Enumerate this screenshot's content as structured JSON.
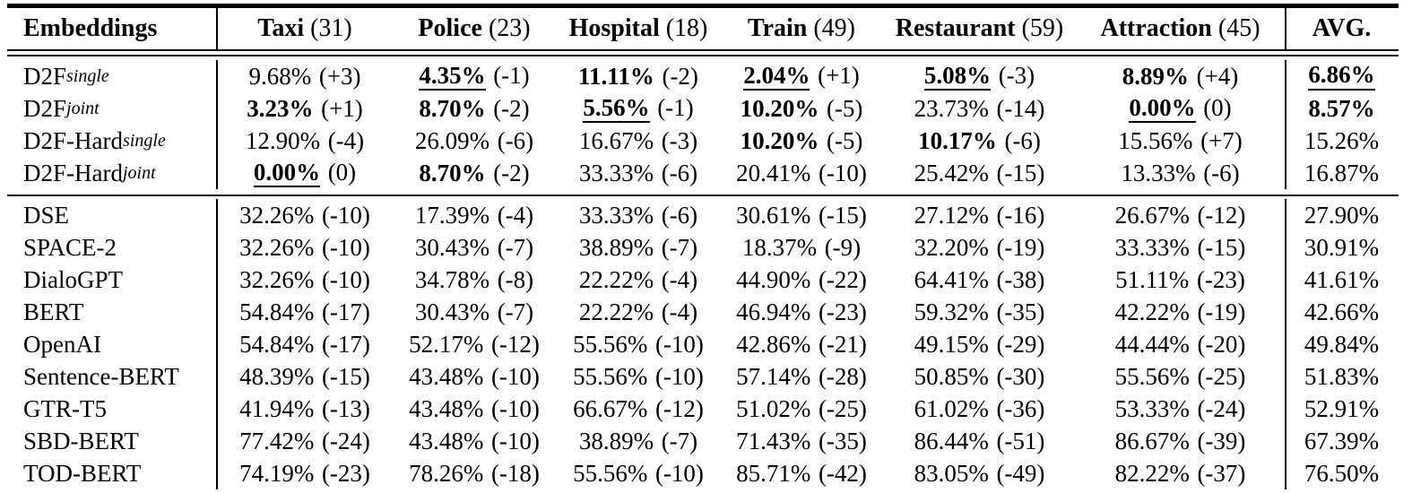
{
  "table": {
    "header": {
      "row_label": "Embeddings",
      "avg_label": "AVG.",
      "columns": [
        {
          "name": "Taxi",
          "count": "(31)"
        },
        {
          "name": "Police",
          "count": "(23)"
        },
        {
          "name": "Hospital",
          "count": "(18)"
        },
        {
          "name": "Train",
          "count": "(49)"
        },
        {
          "name": "Restaurant",
          "count": "(59)"
        },
        {
          "name": "Attraction",
          "count": "(45)"
        }
      ]
    },
    "section1": [
      {
        "label": {
          "base": "D2F",
          "sub": "single"
        },
        "cells": [
          {
            "v": "9.68%",
            "d": "(+3)",
            "b": false,
            "u": false
          },
          {
            "v": "4.35%",
            "d": "(-1)",
            "b": true,
            "u": true
          },
          {
            "v": "11.11%",
            "d": "(-2)",
            "b": true,
            "u": false
          },
          {
            "v": "2.04%",
            "d": "(+1)",
            "b": true,
            "u": true
          },
          {
            "v": "5.08%",
            "d": "(-3)",
            "b": true,
            "u": true
          },
          {
            "v": "8.89%",
            "d": "(+4)",
            "b": true,
            "u": false
          }
        ],
        "avg": {
          "v": "6.86%",
          "b": true,
          "u": true
        }
      },
      {
        "label": {
          "base": "D2F",
          "sub": "joint"
        },
        "cells": [
          {
            "v": "3.23%",
            "d": "(+1)",
            "b": true,
            "u": false
          },
          {
            "v": "8.70%",
            "d": "(-2)",
            "b": true,
            "u": false
          },
          {
            "v": "5.56%",
            "d": "(-1)",
            "b": true,
            "u": true
          },
          {
            "v": "10.20%",
            "d": "(-5)",
            "b": true,
            "u": false
          },
          {
            "v": "23.73%",
            "d": "(-14)",
            "b": false,
            "u": false
          },
          {
            "v": "0.00%",
            "d": "(0)",
            "b": true,
            "u": true
          }
        ],
        "avg": {
          "v": "8.57%",
          "b": true,
          "u": false
        }
      },
      {
        "label": {
          "base": "D2F-Hard",
          "sub": "single"
        },
        "cells": [
          {
            "v": "12.90%",
            "d": "(-4)",
            "b": false,
            "u": false
          },
          {
            "v": "26.09%",
            "d": "(-6)",
            "b": false,
            "u": false
          },
          {
            "v": "16.67%",
            "d": "(-3)",
            "b": false,
            "u": false
          },
          {
            "v": "10.20%",
            "d": "(-5)",
            "b": true,
            "u": false
          },
          {
            "v": "10.17%",
            "d": "(-6)",
            "b": true,
            "u": false
          },
          {
            "v": "15.56%",
            "d": "(+7)",
            "b": false,
            "u": false
          }
        ],
        "avg": {
          "v": "15.26%",
          "b": false,
          "u": false
        }
      },
      {
        "label": {
          "base": "D2F-Hard",
          "sub": "joint"
        },
        "cells": [
          {
            "v": "0.00%",
            "d": "(0)",
            "b": true,
            "u": true
          },
          {
            "v": "8.70%",
            "d": "(-2)",
            "b": true,
            "u": false
          },
          {
            "v": "33.33%",
            "d": "(-6)",
            "b": false,
            "u": false
          },
          {
            "v": "20.41%",
            "d": "(-10)",
            "b": false,
            "u": false
          },
          {
            "v": "25.42%",
            "d": "(-15)",
            "b": false,
            "u": false
          },
          {
            "v": "13.33%",
            "d": "(-6)",
            "b": false,
            "u": false
          }
        ],
        "avg": {
          "v": "16.87%",
          "b": false,
          "u": false
        }
      }
    ],
    "section2": [
      {
        "label": {
          "base": "DSE",
          "sub": ""
        },
        "cells": [
          {
            "v": "32.26%",
            "d": "(-10)",
            "b": false,
            "u": false
          },
          {
            "v": "17.39%",
            "d": "(-4)",
            "b": false,
            "u": false
          },
          {
            "v": "33.33%",
            "d": "(-6)",
            "b": false,
            "u": false
          },
          {
            "v": "30.61%",
            "d": "(-15)",
            "b": false,
            "u": false
          },
          {
            "v": "27.12%",
            "d": "(-16)",
            "b": false,
            "u": false
          },
          {
            "v": "26.67%",
            "d": "(-12)",
            "b": false,
            "u": false
          }
        ],
        "avg": {
          "v": "27.90%",
          "b": false,
          "u": false
        }
      },
      {
        "label": {
          "base": "SPACE-2",
          "sub": ""
        },
        "cells": [
          {
            "v": "32.26%",
            "d": "(-10)",
            "b": false,
            "u": false
          },
          {
            "v": "30.43%",
            "d": "(-7)",
            "b": false,
            "u": false
          },
          {
            "v": "38.89%",
            "d": "(-7)",
            "b": false,
            "u": false
          },
          {
            "v": "18.37%",
            "d": "(-9)",
            "b": false,
            "u": false
          },
          {
            "v": "32.20%",
            "d": "(-19)",
            "b": false,
            "u": false
          },
          {
            "v": "33.33%",
            "d": "(-15)",
            "b": false,
            "u": false
          }
        ],
        "avg": {
          "v": "30.91%",
          "b": false,
          "u": false
        }
      },
      {
        "label": {
          "base": "DialoGPT",
          "sub": ""
        },
        "cells": [
          {
            "v": "32.26%",
            "d": "(-10)",
            "b": false,
            "u": false
          },
          {
            "v": "34.78%",
            "d": "(-8)",
            "b": false,
            "u": false
          },
          {
            "v": "22.22%",
            "d": "(-4)",
            "b": false,
            "u": false
          },
          {
            "v": "44.90%",
            "d": "(-22)",
            "b": false,
            "u": false
          },
          {
            "v": "64.41%",
            "d": "(-38)",
            "b": false,
            "u": false
          },
          {
            "v": "51.11%",
            "d": "(-23)",
            "b": false,
            "u": false
          }
        ],
        "avg": {
          "v": "41.61%",
          "b": false,
          "u": false
        }
      },
      {
        "label": {
          "base": "BERT",
          "sub": ""
        },
        "cells": [
          {
            "v": "54.84%",
            "d": "(-17)",
            "b": false,
            "u": false
          },
          {
            "v": "30.43%",
            "d": "(-7)",
            "b": false,
            "u": false
          },
          {
            "v": "22.22%",
            "d": "(-4)",
            "b": false,
            "u": false
          },
          {
            "v": "46.94%",
            "d": "(-23)",
            "b": false,
            "u": false
          },
          {
            "v": "59.32%",
            "d": "(-35)",
            "b": false,
            "u": false
          },
          {
            "v": "42.22%",
            "d": "(-19)",
            "b": false,
            "u": false
          }
        ],
        "avg": {
          "v": "42.66%",
          "b": false,
          "u": false
        }
      },
      {
        "label": {
          "base": "OpenAI",
          "sub": ""
        },
        "cells": [
          {
            "v": "54.84%",
            "d": "(-17)",
            "b": false,
            "u": false
          },
          {
            "v": "52.17%",
            "d": "(-12)",
            "b": false,
            "u": false
          },
          {
            "v": "55.56%",
            "d": "(-10)",
            "b": false,
            "u": false
          },
          {
            "v": "42.86%",
            "d": "(-21)",
            "b": false,
            "u": false
          },
          {
            "v": "49.15%",
            "d": "(-29)",
            "b": false,
            "u": false
          },
          {
            "v": "44.44%",
            "d": "(-20)",
            "b": false,
            "u": false
          }
        ],
        "avg": {
          "v": "49.84%",
          "b": false,
          "u": false
        }
      },
      {
        "label": {
          "base": "Sentence-BERT",
          "sub": ""
        },
        "cells": [
          {
            "v": "48.39%",
            "d": "(-15)",
            "b": false,
            "u": false
          },
          {
            "v": "43.48%",
            "d": "(-10)",
            "b": false,
            "u": false
          },
          {
            "v": "55.56%",
            "d": "(-10)",
            "b": false,
            "u": false
          },
          {
            "v": "57.14%",
            "d": "(-28)",
            "b": false,
            "u": false
          },
          {
            "v": "50.85%",
            "d": "(-30)",
            "b": false,
            "u": false
          },
          {
            "v": "55.56%",
            "d": "(-25)",
            "b": false,
            "u": false
          }
        ],
        "avg": {
          "v": "51.83%",
          "b": false,
          "u": false
        }
      },
      {
        "label": {
          "base": "GTR-T5",
          "sub": ""
        },
        "cells": [
          {
            "v": "41.94%",
            "d": "(-13)",
            "b": false,
            "u": false
          },
          {
            "v": "43.48%",
            "d": "(-10)",
            "b": false,
            "u": false
          },
          {
            "v": "66.67%",
            "d": "(-12)",
            "b": false,
            "u": false
          },
          {
            "v": "51.02%",
            "d": "(-25)",
            "b": false,
            "u": false
          },
          {
            "v": "61.02%",
            "d": "(-36)",
            "b": false,
            "u": false
          },
          {
            "v": "53.33%",
            "d": "(-24)",
            "b": false,
            "u": false
          }
        ],
        "avg": {
          "v": "52.91%",
          "b": false,
          "u": false
        }
      },
      {
        "label": {
          "base": "SBD-BERT",
          "sub": ""
        },
        "cells": [
          {
            "v": "77.42%",
            "d": "(-24)",
            "b": false,
            "u": false
          },
          {
            "v": "43.48%",
            "d": "(-10)",
            "b": false,
            "u": false
          },
          {
            "v": "38.89%",
            "d": "(-7)",
            "b": false,
            "u": false
          },
          {
            "v": "71.43%",
            "d": "(-35)",
            "b": false,
            "u": false
          },
          {
            "v": "86.44%",
            "d": "(-51)",
            "b": false,
            "u": false
          },
          {
            "v": "86.67%",
            "d": "(-39)",
            "b": false,
            "u": false
          }
        ],
        "avg": {
          "v": "67.39%",
          "b": false,
          "u": false
        }
      },
      {
        "label": {
          "base": "TOD-BERT",
          "sub": ""
        },
        "cells": [
          {
            "v": "74.19%",
            "d": "(-23)",
            "b": false,
            "u": false
          },
          {
            "v": "78.26%",
            "d": "(-18)",
            "b": false,
            "u": false
          },
          {
            "v": "55.56%",
            "d": "(-10)",
            "b": false,
            "u": false
          },
          {
            "v": "85.71%",
            "d": "(-42)",
            "b": false,
            "u": false
          },
          {
            "v": "83.05%",
            "d": "(-49)",
            "b": false,
            "u": false
          },
          {
            "v": "82.22%",
            "d": "(-37)",
            "b": false,
            "u": false
          }
        ],
        "avg": {
          "v": "76.50%",
          "b": false,
          "u": false
        }
      }
    ]
  }
}
